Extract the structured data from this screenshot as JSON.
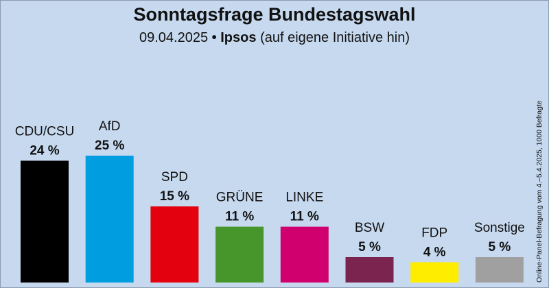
{
  "title": "Sonntagsfrage Bundestagswahl",
  "subtitle": {
    "date": "09.04.2025",
    "separator": "•",
    "institute": "Ipsos",
    "note": "(auf eigene Initiative hin)"
  },
  "side_note": "Online-Panel-Befragung vom 4.–5.4.2025, 1000 Befragte",
  "chart_data": {
    "type": "bar",
    "title": "Sonntagsfrage Bundestagswahl",
    "categories": [
      "CDU/CSU",
      "AfD",
      "SPD",
      "GRÜNE",
      "LINKE",
      "BSW",
      "FDP",
      "Sonstige"
    ],
    "values": [
      24,
      25,
      15,
      11,
      11,
      5,
      4,
      5
    ],
    "value_labels": [
      "24 %",
      "25 %",
      "15 %",
      "11 %",
      "11 %",
      "5 %",
      "4 %",
      "5 %"
    ],
    "colors": [
      "#000000",
      "#009ee0",
      "#e3000f",
      "#46962b",
      "#d0006f",
      "#7b2450",
      "#ffed00",
      "#a0a0a0"
    ],
    "unit": "%",
    "ylim": [
      0,
      25
    ],
    "grid": false,
    "legend": "none"
  }
}
